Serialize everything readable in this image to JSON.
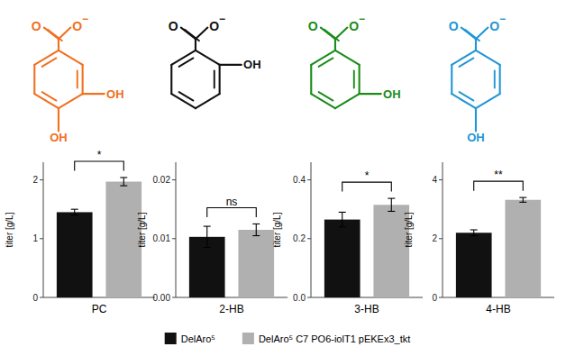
{
  "chart_data": [
    {
      "type": "bar",
      "xlabel": "PC",
      "ylabel": "titer [g/L]",
      "categories": [
        null
      ],
      "series": [
        {
          "name": "DelAro⁵",
          "color": "#111111",
          "values": [
            1.45
          ],
          "errors": [
            0.05
          ]
        },
        {
          "name": "DelAro⁵ C7 PO6-iolT1 pEKEx3_tkt",
          "color": "#b0b0b0",
          "values": [
            1.97
          ],
          "errors": [
            0.07
          ]
        }
      ],
      "ylim": [
        0,
        2.3
      ],
      "yticks": [
        0,
        1,
        2
      ],
      "legend": "bottom",
      "annotations": [
        {
          "text": "*"
        },
        {
          "text": "O",
          "color": "#F07020"
        },
        {
          "text": "O",
          "color": "#F07020"
        },
        {
          "text": "−",
          "color": "#F07020"
        },
        {
          "text": "OH",
          "color": "#F07020"
        },
        {
          "text": "OH",
          "color": "#F07020"
        }
      ]
    },
    {
      "type": "bar",
      "xlabel": "2-HB",
      "ylabel": "titer [g/L]",
      "categories": [
        null
      ],
      "series": [
        {
          "color": "#111111",
          "values": [
            0.0103
          ],
          "errors": [
            0.0018
          ]
        },
        {
          "color": "#b0b0b0",
          "values": [
            0.0115
          ],
          "errors": [
            0.001
          ]
        }
      ],
      "ylim": [
        0,
        0.023
      ],
      "yticks": [
        {
          "value": 0.0,
          "label": "0.00"
        },
        {
          "value": 0.01,
          "label": "0.01"
        },
        {
          "value": 0.02,
          "label": "0.02"
        }
      ],
      "annotations": [
        {
          "text": "ns"
        },
        {
          "text": "O",
          "color": "#111111"
        },
        {
          "text": "O",
          "color": "#111111"
        },
        {
          "text": "−",
          "color": "#111111"
        },
        {
          "text": "OH",
          "color": "#111111"
        }
      ]
    },
    {
      "type": "bar",
      "xlabel": "3-HB",
      "ylabel": "titer [g/L]",
      "categories": [
        null
      ],
      "series": [
        {
          "color": "#111111",
          "values": [
            0.265
          ],
          "errors": [
            0.025
          ]
        },
        {
          "color": "#b0b0b0",
          "values": [
            0.315
          ],
          "errors": [
            0.022
          ]
        }
      ],
      "ylim": [
        0,
        0.46
      ],
      "yticks": [
        {
          "value": 0.0,
          "label": "0.0"
        },
        {
          "value": 0.2,
          "label": "0.2"
        },
        {
          "value": 0.4,
          "label": "0.4"
        }
      ],
      "annotations": [
        {
          "text": "*"
        },
        {
          "text": "O",
          "color": "#1a8c1a"
        },
        {
          "text": "O",
          "color": "#1a8c1a"
        },
        {
          "text": "−",
          "color": "#1a8c1a"
        },
        {
          "text": "OH",
          "color": "#1a8c1a"
        }
      ]
    },
    {
      "type": "bar",
      "xlabel": "4-HB",
      "ylabel": "titer [g/L]",
      "categories": [
        null
      ],
      "series": [
        {
          "color": "#111111",
          "values": [
            2.2
          ],
          "errors": [
            0.1
          ]
        },
        {
          "color": "#b0b0b0",
          "values": [
            3.32
          ],
          "errors": [
            0.08
          ]
        }
      ],
      "ylim": [
        0,
        4.6
      ],
      "yticks": [
        0,
        2,
        4
      ],
      "annotations": [
        {
          "text": "**"
        },
        {
          "text": "O",
          "color": "#2196d4"
        },
        {
          "text": "O",
          "color": "#2196d4"
        },
        {
          "text": "−",
          "color": "#2196d4"
        },
        {
          "text": "OH",
          "color": "#2196d4"
        }
      ]
    }
  ]
}
